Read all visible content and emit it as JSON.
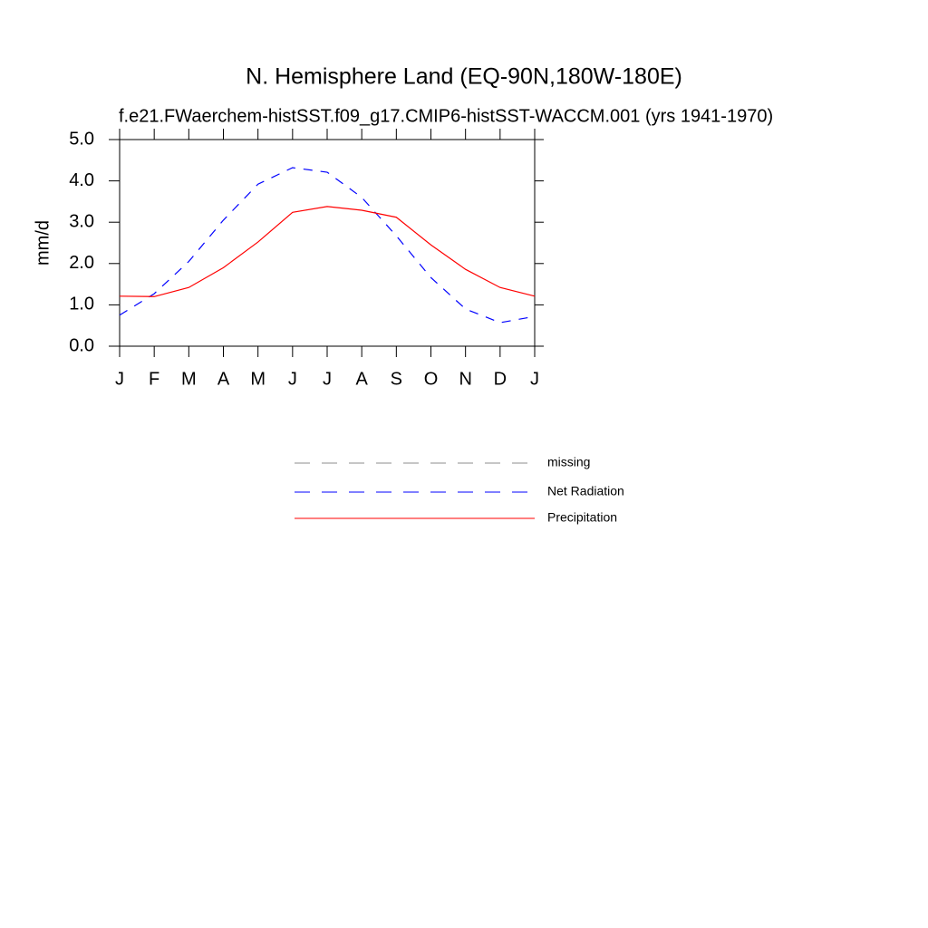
{
  "chart_data": {
    "type": "line",
    "title": "N. Hemisphere Land (EQ-90N,180W-180E)",
    "subtitle": "f.e21.FWaerchem-histSST.f09_g17.CMIP6-histSST-WACCM.001 (yrs 1941-1970)",
    "y_label": "mm/d",
    "categories": [
      "J",
      "F",
      "M",
      "A",
      "M",
      "J",
      "J",
      "A",
      "S",
      "O",
      "N",
      "D",
      "J"
    ],
    "ylim": [
      0,
      5
    ],
    "yticks": [
      {
        "value": 0,
        "label": "0.0"
      },
      {
        "value": 1,
        "label": "1.0"
      },
      {
        "value": 2,
        "label": "2.0"
      },
      {
        "value": 3,
        "label": "3.0"
      },
      {
        "value": 4,
        "label": "4.0"
      },
      {
        "value": 5,
        "label": "5.0"
      }
    ],
    "series": [
      {
        "name": "missing",
        "color": "#8c8c8c",
        "style": "dashed",
        "values": [
          null,
          null,
          null,
          null,
          null,
          null,
          null,
          null,
          null,
          null,
          null,
          null,
          null
        ]
      },
      {
        "name": "Net Radiation",
        "color": "#0000ff",
        "style": "dashed",
        "values": [
          0.75,
          1.27,
          2.05,
          3.05,
          3.92,
          4.32,
          4.21,
          3.6,
          2.67,
          1.66,
          0.9,
          0.57,
          0.72
        ]
      },
      {
        "name": "Precipitation",
        "color": "#ff0000",
        "style": "solid",
        "values": [
          1.21,
          1.2,
          1.42,
          1.9,
          2.52,
          3.24,
          3.38,
          3.29,
          3.12,
          2.45,
          1.86,
          1.42,
          1.21
        ]
      }
    ]
  }
}
